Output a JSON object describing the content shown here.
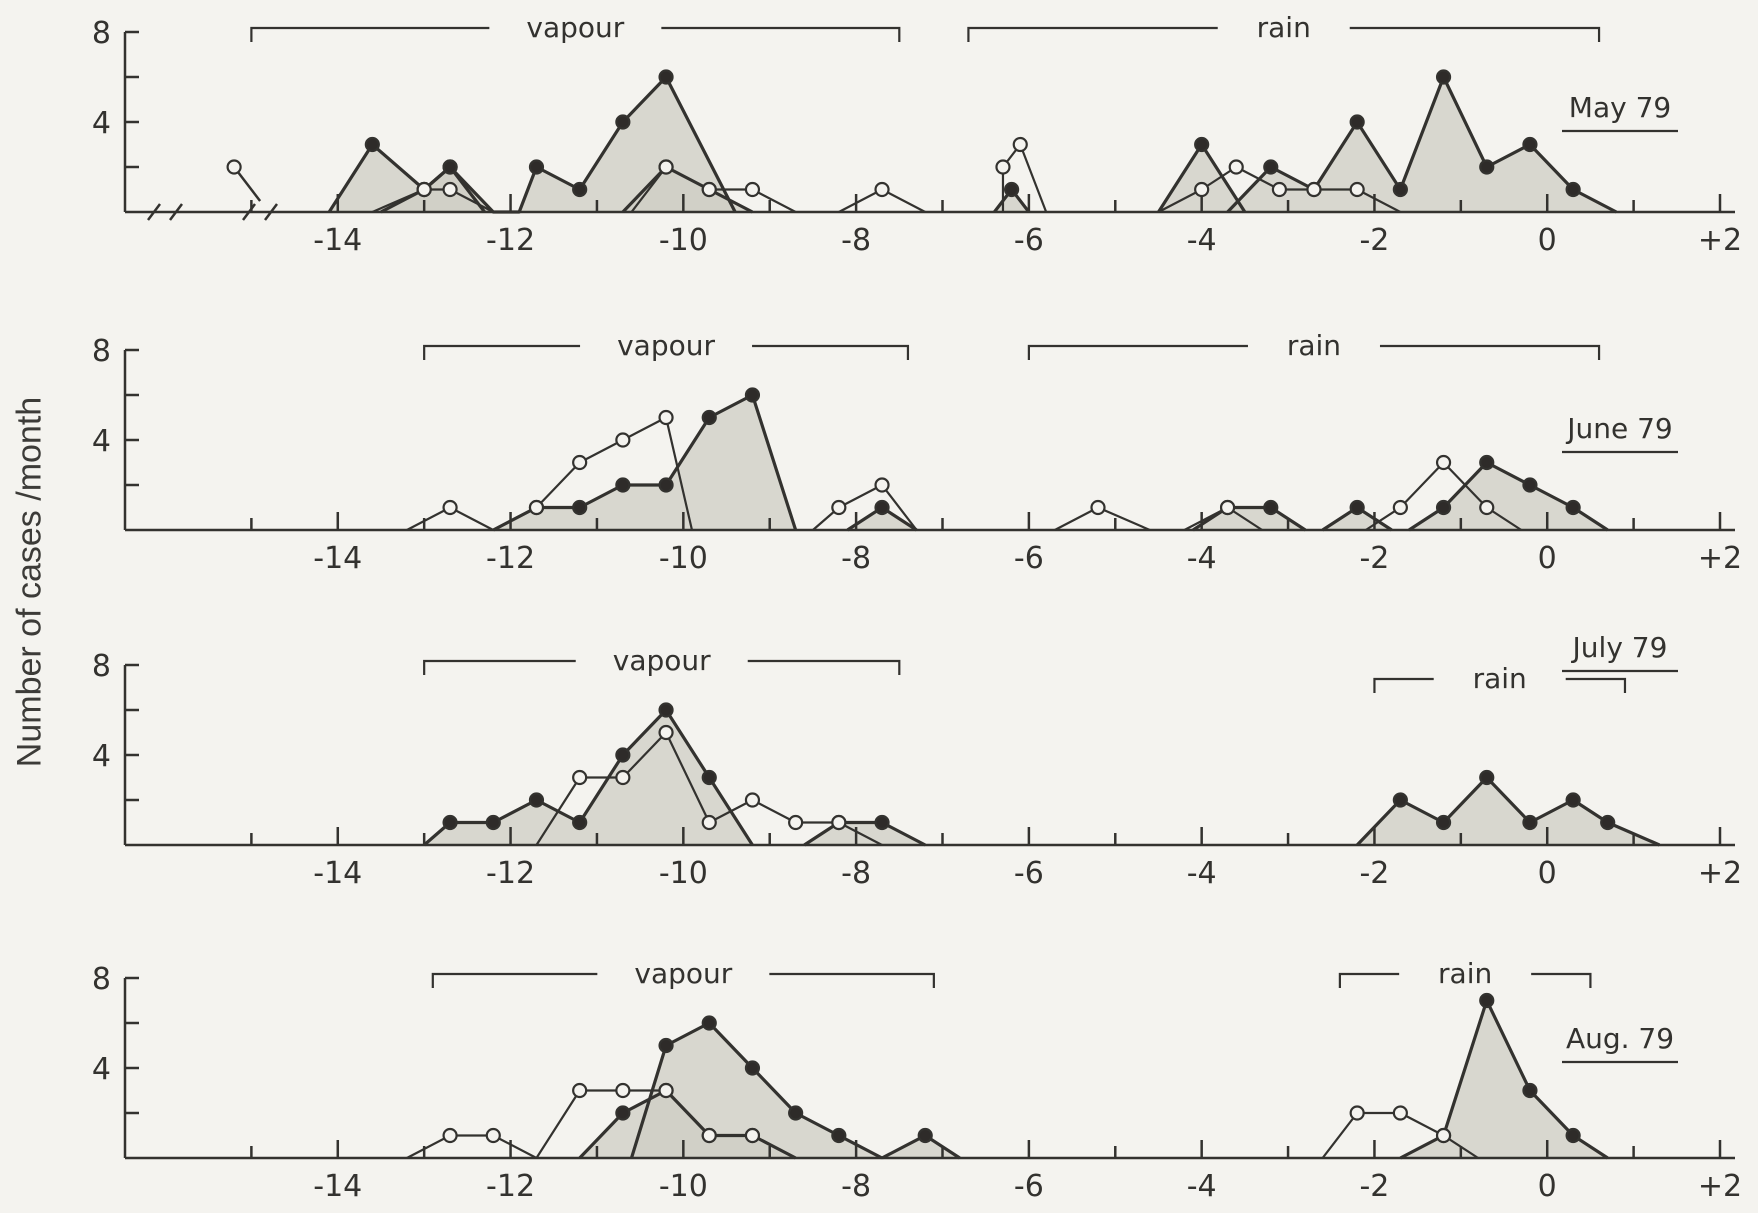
{
  "y_axis_label": "Number of cases /month",
  "chart_data": [
    {
      "type": "line",
      "month": "May 79",
      "xlim": [
        -16,
        2
      ],
      "ylim": [
        0,
        8
      ],
      "y_ticks": [
        4,
        8
      ],
      "x_ticks": [
        -14,
        -12,
        -10,
        -8,
        -6,
        -4,
        -2,
        0,
        2
      ],
      "x_tick_labels": [
        "-14",
        "-12",
        "-10",
        "-8",
        "-6",
        "-4",
        "-2",
        "0",
        "+2"
      ],
      "brackets": [
        {
          "label": "vapour",
          "from": -15.0,
          "to": -7.5
        },
        {
          "label": "rain",
          "from": -6.7,
          "to": 0.6
        }
      ],
      "series": [
        {
          "marker": "filled",
          "points": [
            [
              -14.1,
              0
            ],
            [
              -13.6,
              3
            ],
            [
              -13.0,
              1
            ],
            [
              -12.7,
              2
            ],
            [
              -12.2,
              0
            ],
            [
              -11.9,
              0
            ],
            [
              -11.7,
              2
            ],
            [
              -11.2,
              1
            ],
            [
              -10.7,
              4
            ],
            [
              -10.2,
              6
            ],
            [
              -9.4,
              0
            ]
          ]
        },
        {
          "marker": "filled",
          "points": [
            [
              -13.5,
              0
            ],
            [
              -13.0,
              1
            ],
            [
              -12.7,
              2
            ],
            [
              -12.3,
              0
            ]
          ]
        },
        {
          "marker": "filled",
          "points": [
            [
              -10.7,
              0
            ],
            [
              -10.2,
              2
            ],
            [
              -9.7,
              1
            ],
            [
              -9.2,
              0
            ]
          ]
        },
        {
          "marker": "filled",
          "points": [
            [
              -6.4,
              0
            ],
            [
              -6.2,
              1
            ],
            [
              -6.0,
              0
            ]
          ]
        },
        {
          "marker": "filled",
          "points": [
            [
              -4.5,
              0
            ],
            [
              -4.0,
              3
            ],
            [
              -3.5,
              0
            ]
          ]
        },
        {
          "marker": "filled",
          "points": [
            [
              -3.7,
              0
            ],
            [
              -3.2,
              2
            ],
            [
              -2.7,
              1
            ],
            [
              -2.2,
              4
            ],
            [
              -1.7,
              1
            ],
            [
              -1.2,
              6
            ],
            [
              -0.7,
              2
            ],
            [
              -0.2,
              3
            ],
            [
              0.3,
              1
            ],
            [
              0.8,
              0
            ]
          ]
        },
        {
          "marker": "open",
          "points": [
            [
              -13.6,
              0
            ],
            [
              -13.0,
              1
            ],
            [
              -12.7,
              1
            ],
            [
              -12.2,
              0
            ]
          ]
        },
        {
          "marker": "open",
          "points": [
            [
              -10.6,
              0
            ],
            [
              -10.2,
              2
            ],
            [
              -9.7,
              1
            ],
            [
              -9.2,
              1
            ],
            [
              -8.7,
              0
            ]
          ]
        },
        {
          "marker": "open",
          "points": [
            [
              -8.2,
              0
            ],
            [
              -7.7,
              1
            ],
            [
              -7.2,
              0
            ]
          ]
        },
        {
          "marker": "open",
          "points": [
            [
              -6.3,
              0
            ],
            [
              -6.3,
              2
            ],
            [
              -6.1,
              3
            ],
            [
              -5.8,
              0
            ]
          ]
        },
        {
          "marker": "open",
          "points": [
            [
              -4.5,
              0
            ],
            [
              -4.0,
              1
            ],
            [
              -3.6,
              2
            ],
            [
              -3.1,
              1
            ],
            [
              -2.7,
              1
            ],
            [
              -2.2,
              1
            ],
            [
              -1.7,
              0
            ]
          ]
        }
      ],
      "break_point": {
        "x": -15.2,
        "y": 2
      }
    },
    {
      "type": "line",
      "month": "June 79",
      "xlim": [
        -16,
        2
      ],
      "ylim": [
        0,
        8
      ],
      "y_ticks": [
        4,
        8
      ],
      "x_ticks": [
        -14,
        -12,
        -10,
        -8,
        -6,
        -4,
        -2,
        0,
        2
      ],
      "x_tick_labels": [
        "-14",
        "-12",
        "-10",
        "-8",
        "-6",
        "-4",
        "-2",
        "0",
        "+2"
      ],
      "brackets": [
        {
          "label": "vapour",
          "from": -13.0,
          "to": -7.4
        },
        {
          "label": "rain",
          "from": -6.0,
          "to": 0.6
        }
      ],
      "series": [
        {
          "marker": "filled",
          "points": [
            [
              -12.2,
              0
            ],
            [
              -11.7,
              1
            ],
            [
              -11.2,
              1
            ],
            [
              -10.7,
              2
            ],
            [
              -10.2,
              2
            ],
            [
              -9.7,
              5
            ],
            [
              -9.2,
              6
            ],
            [
              -8.7,
              0
            ]
          ]
        },
        {
          "marker": "filled",
          "points": [
            [
              -8.1,
              0
            ],
            [
              -7.7,
              1
            ],
            [
              -7.3,
              0
            ]
          ]
        },
        {
          "marker": "filled",
          "points": [
            [
              -4.1,
              0
            ],
            [
              -3.7,
              1
            ],
            [
              -3.2,
              1
            ],
            [
              -2.8,
              0
            ]
          ]
        },
        {
          "marker": "filled",
          "points": [
            [
              -2.6,
              0
            ],
            [
              -2.2,
              1
            ],
            [
              -1.8,
              0
            ]
          ]
        },
        {
          "marker": "filled",
          "points": [
            [
              -1.6,
              0
            ],
            [
              -1.2,
              1
            ],
            [
              -0.7,
              3
            ],
            [
              -0.2,
              2
            ],
            [
              0.3,
              1
            ],
            [
              0.7,
              0
            ]
          ]
        },
        {
          "marker": "open",
          "points": [
            [
              -13.2,
              0
            ],
            [
              -12.7,
              1
            ],
            [
              -12.2,
              0
            ]
          ]
        },
        {
          "marker": "open",
          "points": [
            [
              -12.2,
              0
            ],
            [
              -11.7,
              1
            ],
            [
              -11.2,
              3
            ],
            [
              -10.7,
              4
            ],
            [
              -10.2,
              5
            ],
            [
              -9.9,
              0
            ]
          ]
        },
        {
          "marker": "open",
          "points": [
            [
              -8.5,
              0
            ],
            [
              -8.2,
              1
            ],
            [
              -7.7,
              2
            ],
            [
              -7.3,
              0
            ]
          ]
        },
        {
          "marker": "open",
          "points": [
            [
              -5.7,
              0
            ],
            [
              -5.2,
              1
            ],
            [
              -4.6,
              0
            ]
          ]
        },
        {
          "marker": "open",
          "points": [
            [
              -4.2,
              0
            ],
            [
              -3.7,
              1
            ],
            [
              -3.3,
              0
            ]
          ]
        },
        {
          "marker": "open",
          "points": [
            [
              -2.1,
              0
            ],
            [
              -1.7,
              1
            ],
            [
              -1.2,
              3
            ],
            [
              -0.7,
              1
            ],
            [
              -0.3,
              0
            ]
          ]
        }
      ]
    },
    {
      "type": "line",
      "month": "July 79",
      "xlim": [
        -16,
        2
      ],
      "ylim": [
        0,
        8
      ],
      "y_ticks": [
        4,
        8
      ],
      "x_ticks": [
        -14,
        -12,
        -10,
        -8,
        -6,
        -4,
        -2,
        0,
        2
      ],
      "x_tick_labels": [
        "-14",
        "-12",
        "-10",
        "-8",
        "-6",
        "-4",
        "-2",
        "0",
        "+2"
      ],
      "brackets": [
        {
          "label": "vapour",
          "from": -13.0,
          "to": -7.5
        },
        {
          "label": "rain",
          "from": -2.0,
          "to": 0.9
        }
      ],
      "series": [
        {
          "marker": "filled",
          "points": [
            [
              -13.0,
              0
            ],
            [
              -12.7,
              1
            ],
            [
              -12.2,
              1
            ],
            [
              -11.7,
              2
            ],
            [
              -11.2,
              1
            ],
            [
              -10.7,
              4
            ],
            [
              -10.2,
              6
            ],
            [
              -9.7,
              3
            ],
            [
              -9.2,
              0
            ]
          ]
        },
        {
          "marker": "filled",
          "points": [
            [
              -8.6,
              0
            ],
            [
              -8.2,
              1
            ],
            [
              -7.7,
              1
            ],
            [
              -7.2,
              0
            ]
          ]
        },
        {
          "marker": "filled",
          "points": [
            [
              -2.2,
              0
            ],
            [
              -1.7,
              2
            ],
            [
              -1.2,
              1
            ],
            [
              -0.7,
              3
            ],
            [
              -0.2,
              1
            ],
            [
              0.3,
              2
            ],
            [
              0.7,
              1
            ],
            [
              1.3,
              0
            ]
          ]
        },
        {
          "marker": "open",
          "points": [
            [
              -11.7,
              0
            ],
            [
              -11.2,
              3
            ],
            [
              -10.7,
              3
            ],
            [
              -10.2,
              5
            ],
            [
              -9.7,
              1
            ],
            [
              -9.2,
              2
            ],
            [
              -8.7,
              1
            ],
            [
              -8.2,
              1
            ],
            [
              -7.7,
              0
            ]
          ]
        }
      ]
    },
    {
      "type": "line",
      "month": "Aug. 79",
      "xlim": [
        -16,
        2
      ],
      "ylim": [
        0,
        8
      ],
      "y_ticks": [
        4,
        8
      ],
      "x_ticks": [
        -14,
        -12,
        -10,
        -8,
        -6,
        -4,
        -2,
        0,
        2
      ],
      "x_tick_labels": [
        "-14",
        "-12",
        "-10",
        "-8",
        "-6",
        "-4",
        "-2",
        "0",
        "+2"
      ],
      "brackets": [
        {
          "label": "vapour",
          "from": -12.9,
          "to": -7.1
        },
        {
          "label": "rain",
          "from": -2.4,
          "to": 0.5
        }
      ],
      "series": [
        {
          "marker": "filled",
          "points": [
            [
              -10.6,
              0
            ],
            [
              -10.2,
              5
            ],
            [
              -9.7,
              6
            ],
            [
              -9.2,
              4
            ],
            [
              -8.7,
              2
            ],
            [
              -8.2,
              1
            ],
            [
              -7.7,
              0
            ]
          ]
        },
        {
          "marker": "filled",
          "points": [
            [
              -11.2,
              0
            ],
            [
              -10.7,
              2
            ],
            [
              -10.2,
              3
            ],
            [
              -9.7,
              1
            ],
            [
              -9.2,
              1
            ],
            [
              -8.7,
              0
            ]
          ]
        },
        {
          "marker": "filled",
          "points": [
            [
              -7.7,
              0
            ],
            [
              -7.2,
              1
            ],
            [
              -6.8,
              0
            ]
          ]
        },
        {
          "marker": "filled",
          "points": [
            [
              -1.7,
              0
            ],
            [
              -1.2,
              1
            ],
            [
              -0.7,
              7
            ],
            [
              -0.2,
              3
            ],
            [
              0.3,
              1
            ],
            [
              0.7,
              0
            ]
          ]
        },
        {
          "marker": "open",
          "points": [
            [
              -13.2,
              0
            ],
            [
              -12.7,
              1
            ],
            [
              -12.2,
              1
            ],
            [
              -11.7,
              0
            ]
          ]
        },
        {
          "marker": "open",
          "points": [
            [
              -11.7,
              0
            ],
            [
              -11.2,
              3
            ],
            [
              -10.7,
              3
            ],
            [
              -10.2,
              3
            ],
            [
              -9.7,
              1
            ],
            [
              -9.2,
              1
            ],
            [
              -8.7,
              0
            ]
          ]
        },
        {
          "marker": "open",
          "points": [
            [
              -2.6,
              0
            ],
            [
              -2.2,
              2
            ],
            [
              -1.7,
              2
            ],
            [
              -1.2,
              1
            ],
            [
              -0.8,
              0
            ]
          ]
        }
      ]
    }
  ]
}
